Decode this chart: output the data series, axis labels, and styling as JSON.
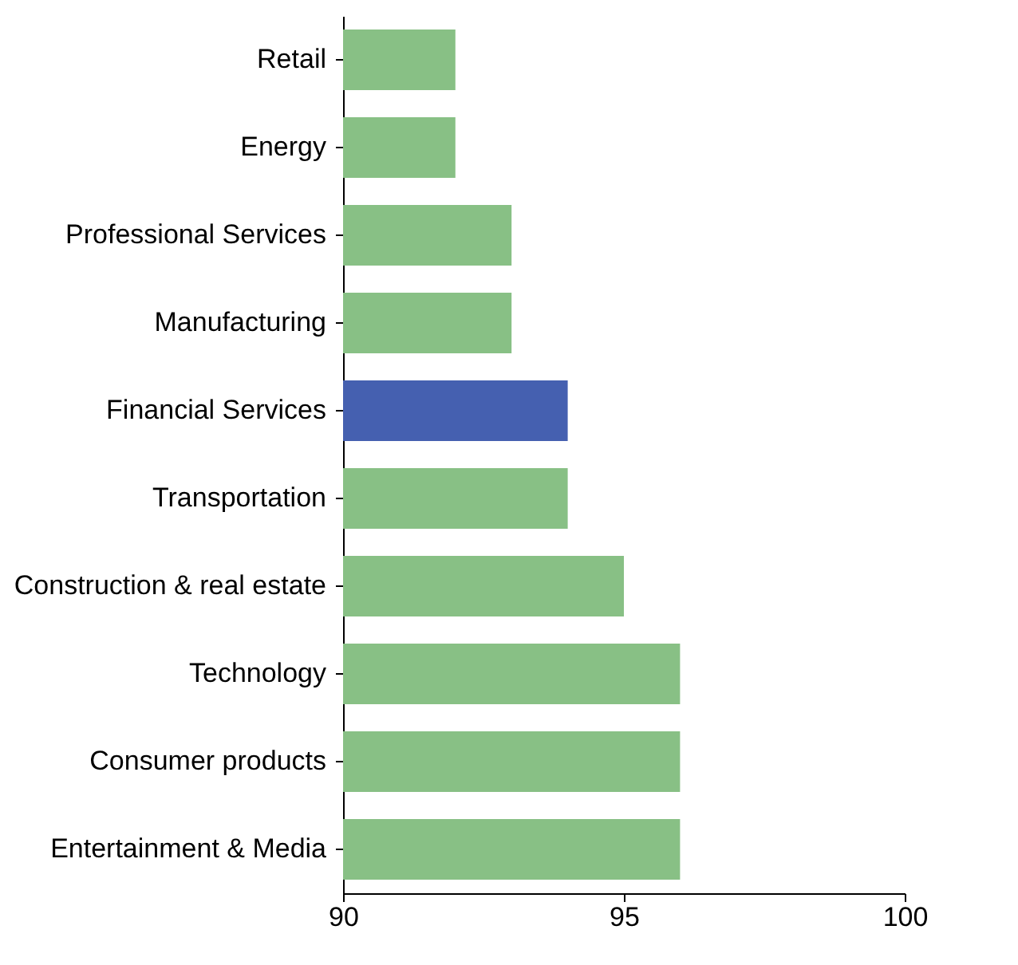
{
  "chart_data": {
    "type": "bar",
    "orientation": "horizontal",
    "categories": [
      "Retail",
      "Energy",
      "Professional Services",
      "Manufacturing",
      "Financial Services",
      "Transportation",
      "Construction & real estate",
      "Technology",
      "Consumer products",
      "Entertainment & Media"
    ],
    "values": [
      92,
      92,
      93,
      93,
      94,
      94,
      95,
      96,
      96,
      96
    ],
    "colors": [
      "#88c085",
      "#88c085",
      "#88c085",
      "#88c085",
      "#4560b0",
      "#88c085",
      "#88c085",
      "#88c085",
      "#88c085",
      "#88c085"
    ],
    "xlim": [
      90,
      100
    ],
    "xticks": [
      90,
      95,
      100
    ],
    "grid": false
  }
}
